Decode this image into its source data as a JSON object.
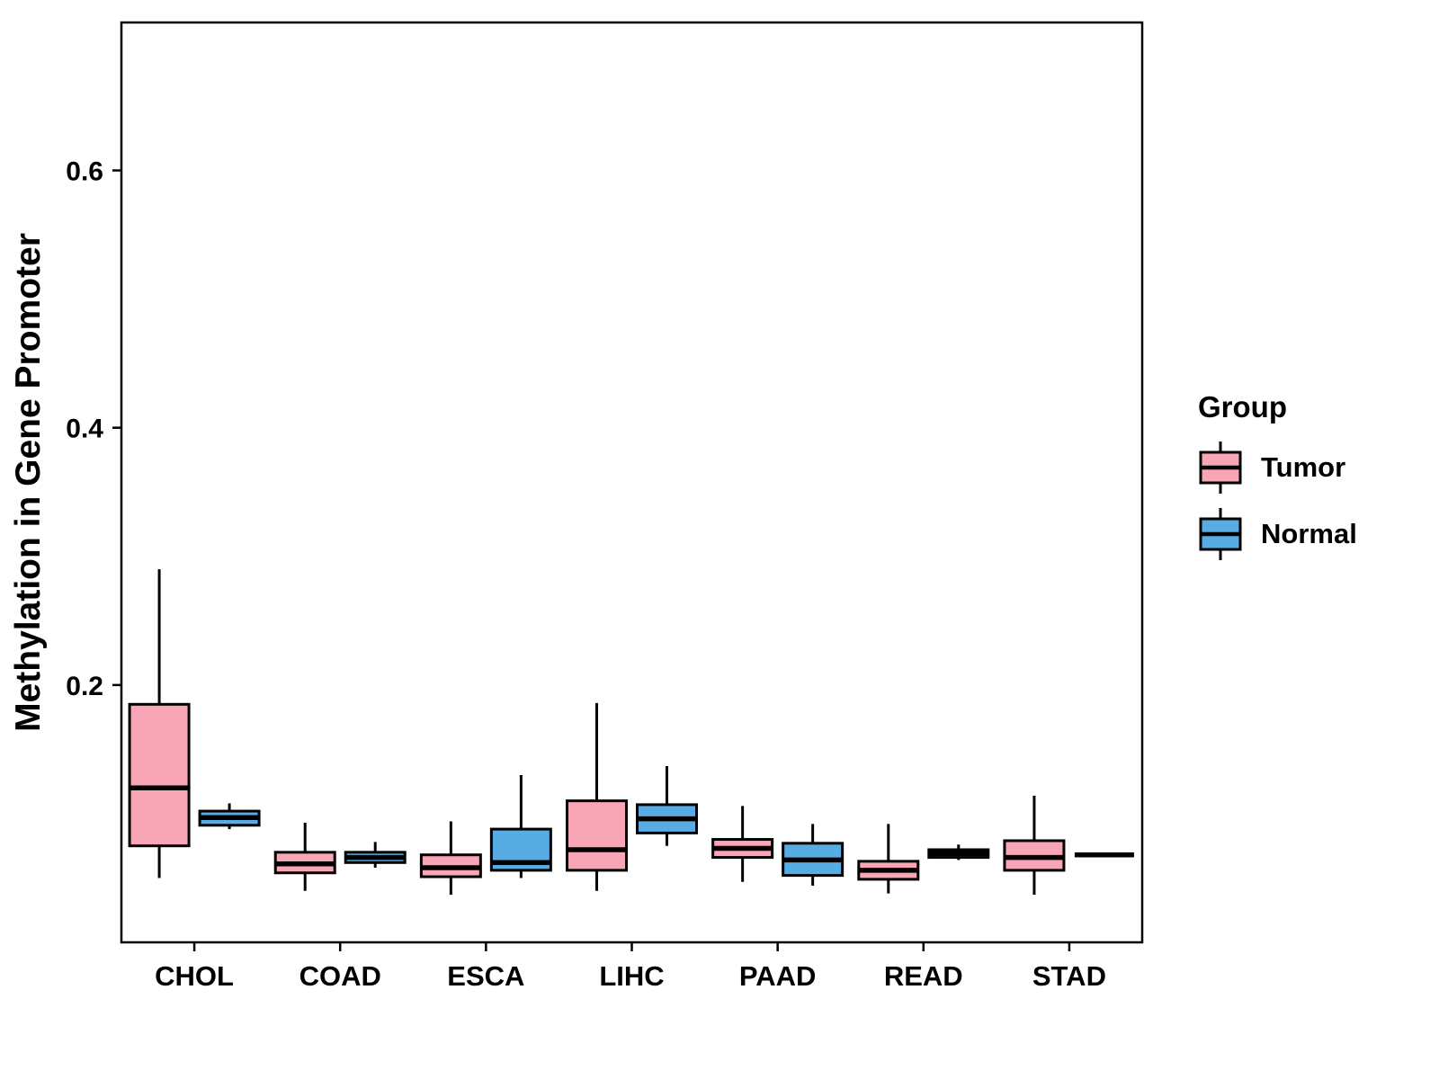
{
  "chart_data": {
    "type": "boxplot",
    "title": "",
    "xlabel": "",
    "ylabel": "Methylation in Gene Promoter",
    "ylim": [
      0,
      0.715
    ],
    "yticks": [
      0.2,
      0.4,
      0.6
    ],
    "ytick_labels": [
      "0.2",
      "0.4",
      "0.6"
    ],
    "categories": [
      "CHOL",
      "COAD",
      "ESCA",
      "LIHC",
      "PAAD",
      "READ",
      "STAD"
    ],
    "grid": false,
    "legend_title": "Group",
    "legend_position": "right",
    "panel_border_color": "#000000",
    "groups": [
      {
        "name": "Tumor",
        "color": "#F8A5B6"
      },
      {
        "name": "Normal",
        "color": "#58ACE4"
      }
    ],
    "series": [
      {
        "name": "Tumor",
        "stats": [
          {
            "category": "CHOL",
            "low": 0.05,
            "q1": 0.075,
            "median": 0.12,
            "q3": 0.185,
            "high": 0.29
          },
          {
            "category": "COAD",
            "low": 0.04,
            "q1": 0.054,
            "median": 0.061,
            "q3": 0.07,
            "high": 0.093
          },
          {
            "category": "ESCA",
            "low": 0.037,
            "q1": 0.051,
            "median": 0.058,
            "q3": 0.068,
            "high": 0.094
          },
          {
            "category": "LIHC",
            "low": 0.04,
            "q1": 0.056,
            "median": 0.072,
            "q3": 0.11,
            "high": 0.186
          },
          {
            "category": "PAAD",
            "low": 0.047,
            "q1": 0.066,
            "median": 0.073,
            "q3": 0.08,
            "high": 0.106
          },
          {
            "category": "READ",
            "low": 0.038,
            "q1": 0.049,
            "median": 0.056,
            "q3": 0.063,
            "high": 0.092
          },
          {
            "category": "STAD",
            "low": 0.037,
            "q1": 0.056,
            "median": 0.066,
            "q3": 0.079,
            "high": 0.114
          }
        ]
      },
      {
        "name": "Normal",
        "stats": [
          {
            "category": "CHOL",
            "low": 0.088,
            "q1": 0.091,
            "median": 0.097,
            "q3": 0.102,
            "high": 0.108
          },
          {
            "category": "COAD",
            "low": 0.058,
            "q1": 0.062,
            "median": 0.066,
            "q3": 0.07,
            "high": 0.078
          },
          {
            "category": "ESCA",
            "low": 0.05,
            "q1": 0.056,
            "median": 0.062,
            "q3": 0.088,
            "high": 0.13
          },
          {
            "category": "LIHC",
            "low": 0.075,
            "q1": 0.085,
            "median": 0.096,
            "q3": 0.107,
            "high": 0.137
          },
          {
            "category": "PAAD",
            "low": 0.044,
            "q1": 0.052,
            "median": 0.064,
            "q3": 0.077,
            "high": 0.092
          },
          {
            "category": "READ",
            "low": 0.064,
            "q1": 0.066,
            "median": 0.069,
            "q3": 0.072,
            "high": 0.076
          },
          {
            "category": "STAD",
            "low": 0.068,
            "q1": 0.068,
            "median": 0.068,
            "q3": 0.068,
            "high": 0.068
          }
        ]
      }
    ]
  }
}
